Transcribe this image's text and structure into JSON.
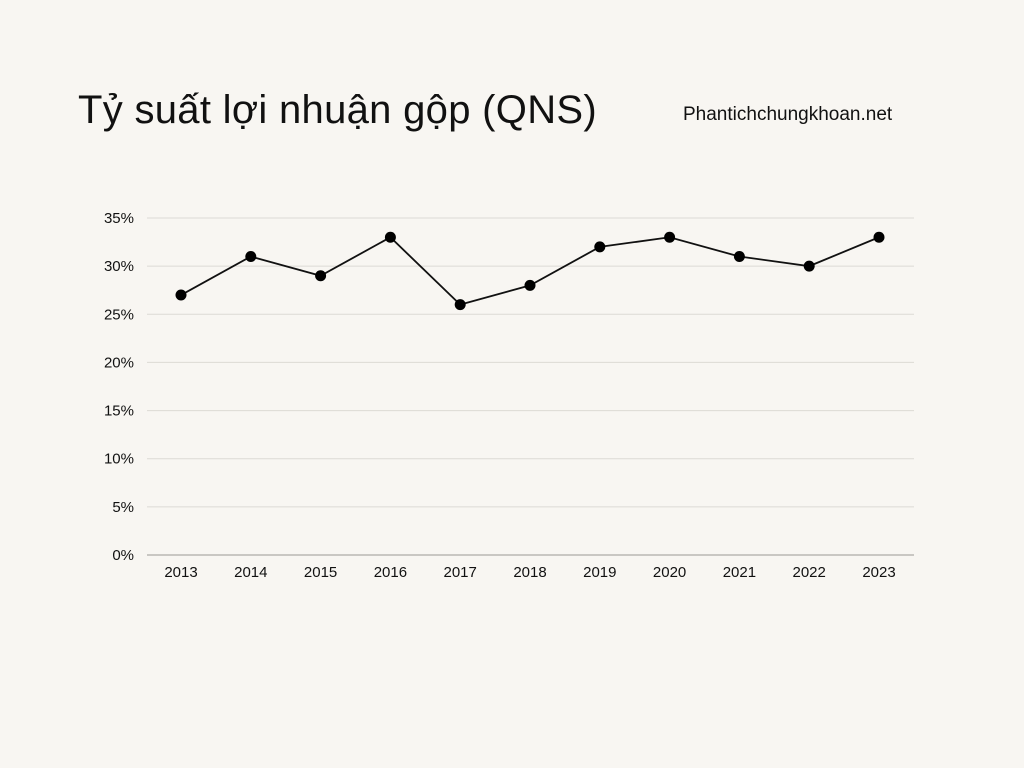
{
  "header": {
    "title": "Tỷ suất lợi nhuận gộp (QNS)",
    "site": "Phantichchungkhoan.net"
  },
  "chart_data": {
    "type": "line",
    "title": "Tỷ suất lợi nhuận gộp (QNS)",
    "x": [
      "2013",
      "2014",
      "2015",
      "2016",
      "2017",
      "2018",
      "2019",
      "2020",
      "2021",
      "2022",
      "2023"
    ],
    "series": [
      {
        "values": [
          27,
          31,
          29,
          33,
          26,
          28,
          32,
          33,
          31,
          30,
          33
        ]
      }
    ],
    "y_ticks": [
      "0%",
      "5%",
      "10%",
      "15%",
      "20%",
      "25%",
      "30%",
      "35%"
    ],
    "ylim": [
      0,
      35
    ],
    "y_unit": "%",
    "grid": true,
    "colors": {
      "line": "#111111",
      "marker": "#000000",
      "grid": "#dcdad5",
      "axis": "#9a9894"
    }
  }
}
